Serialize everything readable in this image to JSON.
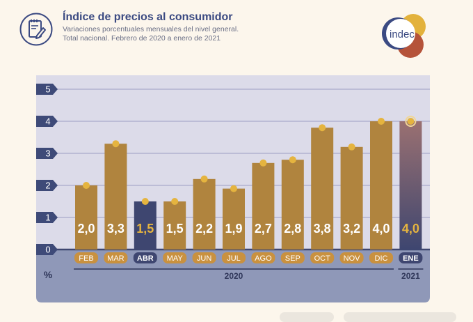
{
  "header": {
    "title": "Índice de precios al consumidor",
    "subtitle_line1": "Variaciones porcentuales mensuales del nivel general.",
    "subtitle_line2": "Total nacional. Febrero de 2020 a enero de 2021",
    "icon": "document-edit-icon"
  },
  "logo": {
    "text": "indec",
    "colors": [
      "#e3b23c",
      "#3b4a82",
      "#b5533a"
    ]
  },
  "colors": {
    "bar": "#b0843e",
    "dot": "#e5b43f",
    "highlight_bar_top": "#9a7071",
    "highlight_bar_bottom": "#3e4670",
    "plot_bg": "#dcdbe9",
    "bottom_band": "#8f98b8",
    "axis_label_bg": "#3e4a78",
    "month_tag": "#c9913f",
    "highlight_tag": "#3e4670",
    "value_text": "#ffffff",
    "value_text_highlight": "#e5b43f"
  },
  "chart_data": {
    "type": "bar",
    "ylabel": "%",
    "ylim": [
      0,
      5
    ],
    "yticks": [
      "0",
      "1",
      "2",
      "3",
      "4",
      "5"
    ],
    "categories": [
      "FEB",
      "MAR",
      "ABR",
      "MAY",
      "JUN",
      "JUL",
      "AGO",
      "SEP",
      "OCT",
      "NOV",
      "DIC",
      "ENE"
    ],
    "values": [
      2.0,
      3.3,
      1.5,
      1.5,
      2.2,
      1.9,
      2.7,
      2.8,
      3.8,
      3.2,
      4.0,
      4.0
    ],
    "value_labels": [
      "2,0",
      "3,3",
      "1,5",
      "1,5",
      "2,2",
      "1,9",
      "2,7",
      "2,8",
      "3,8",
      "3,2",
      "4,0",
      "4,0"
    ],
    "highlight_categories": [
      "ABR",
      "ENE"
    ],
    "years": [
      {
        "label": "2020",
        "from": 0,
        "to": 10
      },
      {
        "label": "2021",
        "from": 11,
        "to": 11
      }
    ],
    "grid": true
  }
}
